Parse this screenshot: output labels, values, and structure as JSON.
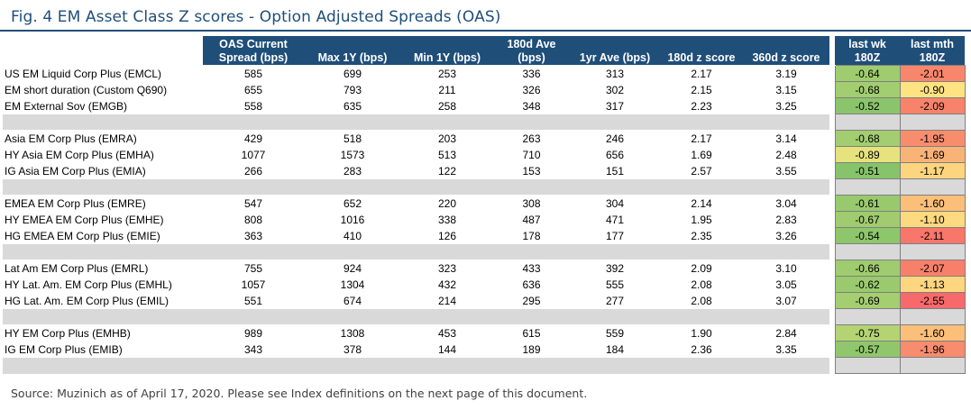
{
  "title": "Fig. 4 EM Asset Class Z scores - Option Adjusted Spreads (OAS)",
  "headers": {
    "oas": "OAS Current Spread (bps)",
    "max": "Max 1Y (bps)",
    "min": "Min 1Y (bps)",
    "ave180": "180d Ave (bps)",
    "ave1y": "1yr Ave (bps)",
    "z180": "180d z score",
    "z360": "360d z score",
    "lastwk": "last wk 180Z",
    "lastmth": "last mth 180Z"
  },
  "groups": [
    {
      "rows": [
        {
          "name": "US EM Liquid Corp Plus (EMCL)",
          "oas": "585",
          "max": "699",
          "min": "253",
          "ave180": "336",
          "ave1y": "313",
          "z180": "2.17",
          "z360": "3.19",
          "lastwk": "-0.64",
          "lastmth": "-2.01",
          "wk_color": "#9fcc6e",
          "mth_color": "#f8866c"
        },
        {
          "name": "EM short duration (Custom Q690)",
          "oas": "655",
          "max": "793",
          "min": "211",
          "ave180": "326",
          "ave1y": "302",
          "z180": "2.15",
          "z360": "3.15",
          "lastwk": "-0.68",
          "lastmth": "-0.90",
          "wk_color": "#a2cd70",
          "mth_color": "#fee382"
        },
        {
          "name": "EM External Sov (EMGB)",
          "oas": "558",
          "max": "635",
          "min": "258",
          "ave180": "348",
          "ave1y": "317",
          "z180": "2.23",
          "z360": "3.25",
          "lastwk": "-0.52",
          "lastmth": "-2.09",
          "wk_color": "#8bc56b",
          "mth_color": "#f7836b"
        }
      ]
    },
    {
      "rows": [
        {
          "name": "Asia EM Corp Plus (EMRA)",
          "oas": "429",
          "max": "518",
          "min": "203",
          "ave180": "263",
          "ave1y": "246",
          "z180": "2.17",
          "z360": "3.14",
          "lastwk": "-0.68",
          "lastmth": "-1.95",
          "wk_color": "#a2cd70",
          "mth_color": "#f88d6e"
        },
        {
          "name": "HY Asia EM Corp Plus (EMHA)",
          "oas": "1077",
          "max": "1573",
          "min": "513",
          "ave180": "710",
          "ave1y": "656",
          "z180": "1.69",
          "z360": "2.48",
          "lastwk": "-0.89",
          "lastmth": "-1.69",
          "wk_color": "#e6e27e",
          "mth_color": "#fab377"
        },
        {
          "name": "IG Asia EM Corp Plus (EMIA)",
          "oas": "266",
          "max": "283",
          "min": "122",
          "ave180": "153",
          "ave1y": "151",
          "z180": "2.57",
          "z360": "3.55",
          "lastwk": "-0.51",
          "lastmth": "-1.17",
          "wk_color": "#86c36a",
          "mth_color": "#fdd57f"
        }
      ]
    },
    {
      "rows": [
        {
          "name": "EMEA EM Corp Plus (EMRE)",
          "oas": "547",
          "max": "652",
          "min": "220",
          "ave180": "308",
          "ave1y": "304",
          "z180": "2.14",
          "z360": "3.04",
          "lastwk": "-0.61",
          "lastmth": "-1.60",
          "wk_color": "#98ca6d",
          "mth_color": "#fbbf79"
        },
        {
          "name": "HY EMEA EM Corp Plus (EMHE)",
          "oas": "808",
          "max": "1016",
          "min": "338",
          "ave180": "487",
          "ave1y": "471",
          "z180": "1.95",
          "z360": "2.83",
          "lastwk": "-0.67",
          "lastmth": "-1.10",
          "wk_color": "#a0cc6f",
          "mth_color": "#fdd97f"
        },
        {
          "name": "HG EMEA EM Corp Plus (EMIE)",
          "oas": "363",
          "max": "410",
          "min": "126",
          "ave180": "178",
          "ave1y": "177",
          "z180": "2.35",
          "z360": "3.26",
          "lastwk": "-0.54",
          "lastmth": "-2.11",
          "wk_color": "#8ec66b",
          "mth_color": "#f8766a"
        }
      ]
    },
    {
      "rows": [
        {
          "name": "Lat Am EM Corp Plus (EMRL)",
          "oas": "755",
          "max": "924",
          "min": "323",
          "ave180": "433",
          "ave1y": "392",
          "z180": "2.09",
          "z360": "3.10",
          "lastwk": "-0.66",
          "lastmth": "-2.07",
          "wk_color": "#9ecc6e",
          "mth_color": "#f8806b"
        },
        {
          "name": "HY Lat. Am. EM Corp Plus (EMHL)",
          "oas": "1057",
          "max": "1304",
          "min": "432",
          "ave180": "636",
          "ave1y": "555",
          "z180": "2.08",
          "z360": "3.05",
          "lastwk": "-0.62",
          "lastmth": "-1.13",
          "wk_color": "#9aca6d",
          "mth_color": "#fdd67f"
        },
        {
          "name": "HG Lat. Am. EM Corp Plus (EMIL)",
          "oas": "551",
          "max": "674",
          "min": "214",
          "ave180": "295",
          "ave1y": "277",
          "z180": "2.08",
          "z360": "3.07",
          "lastwk": "-0.69",
          "lastmth": "-2.55",
          "wk_color": "#a4ce70",
          "mth_color": "#f8696b"
        }
      ]
    },
    {
      "rows": [
        {
          "name": "HY EM Corp Plus (EMHB)",
          "oas": "989",
          "max": "1308",
          "min": "453",
          "ave180": "615",
          "ave1y": "559",
          "z180": "1.90",
          "z360": "2.84",
          "lastwk": "-0.75",
          "lastmth": "-1.60",
          "wk_color": "#b4d373",
          "mth_color": "#fbbf79"
        },
        {
          "name": "IG EM Corp Plus (EMIB)",
          "oas": "343",
          "max": "378",
          "min": "144",
          "ave180": "189",
          "ave1y": "184",
          "z180": "2.36",
          "z360": "3.35",
          "lastwk": "-0.57",
          "lastmth": "-1.96",
          "wk_color": "#91c76c",
          "mth_color": "#f88c6e"
        }
      ]
    }
  ],
  "footer": "Source: Muzinich as of April 17, 2020. Please see Index definitions on the next page of this document."
}
